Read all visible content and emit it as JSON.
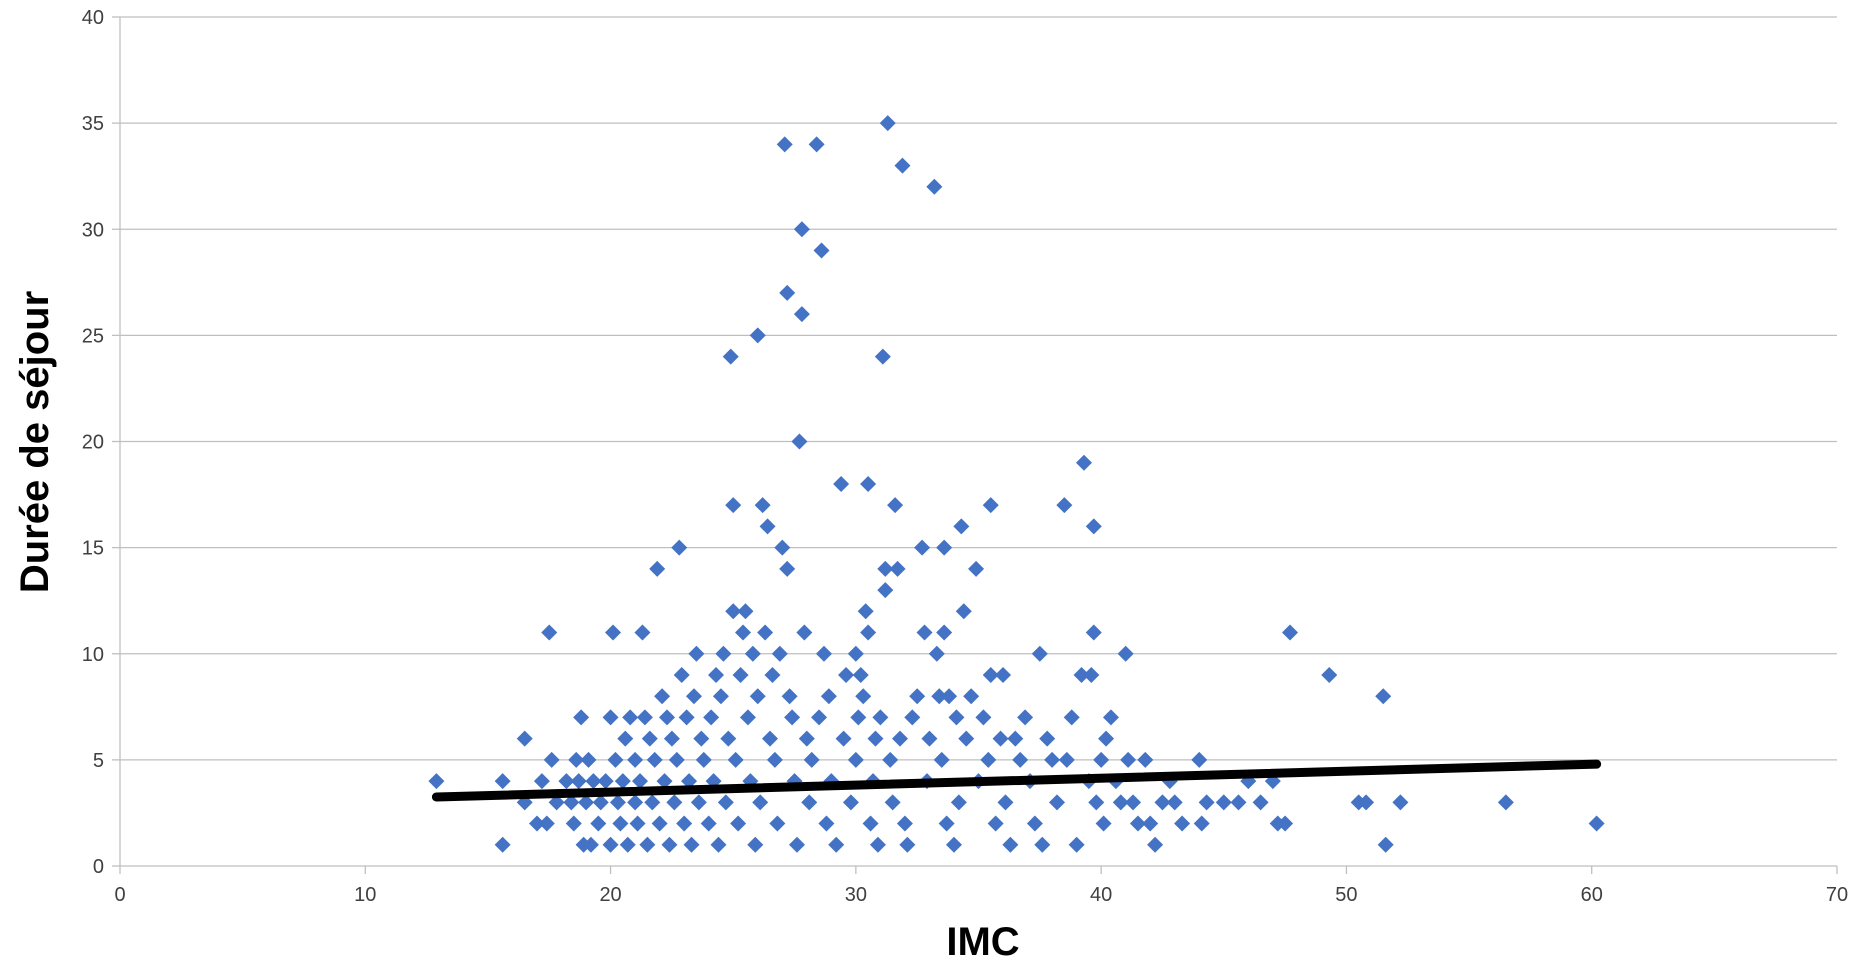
{
  "chart_data": {
    "type": "scatter",
    "title": "",
    "xlabel": "IMC",
    "ylabel": "Durée de séjour",
    "xlim": [
      0,
      70
    ],
    "ylim": [
      0,
      40
    ],
    "x_ticks": [
      0,
      10,
      20,
      30,
      40,
      50,
      60,
      70
    ],
    "y_ticks": [
      0,
      5,
      10,
      15,
      20,
      25,
      30,
      35,
      40
    ],
    "grid": "horizontal",
    "legend": "none",
    "marker": "diamond",
    "colors": {
      "points": "#4472C4",
      "trendline": "#000000",
      "grid": "#BFBFBF",
      "axis": "#BFBFBF"
    },
    "trendline": {
      "type": "linear",
      "x": [
        12.9,
        60.2
      ],
      "y": [
        3.25,
        4.8
      ]
    },
    "series": [
      {
        "name": "",
        "points": [
          [
            12.9,
            4
          ],
          [
            15.6,
            4
          ],
          [
            15.6,
            1
          ],
          [
            16.5,
            6
          ],
          [
            16.5,
            3
          ],
          [
            17,
            2
          ],
          [
            17.2,
            4
          ],
          [
            17.4,
            2
          ],
          [
            17.5,
            11
          ],
          [
            17.6,
            5
          ],
          [
            17.8,
            3
          ],
          [
            18.2,
            4
          ],
          [
            18.4,
            3
          ],
          [
            18.5,
            2
          ],
          [
            18.6,
            5
          ],
          [
            18.7,
            4
          ],
          [
            18.8,
            7
          ],
          [
            18.9,
            1
          ],
          [
            19,
            3
          ],
          [
            19.1,
            5
          ],
          [
            19.2,
            1
          ],
          [
            19.3,
            4
          ],
          [
            19.5,
            2
          ],
          [
            19.6,
            3
          ],
          [
            19.8,
            4
          ],
          [
            20,
            7
          ],
          [
            20,
            1
          ],
          [
            20.1,
            11
          ],
          [
            20.2,
            5
          ],
          [
            20.3,
            3
          ],
          [
            20.4,
            2
          ],
          [
            20.5,
            4
          ],
          [
            20.6,
            6
          ],
          [
            20.7,
            1
          ],
          [
            20.8,
            7
          ],
          [
            21,
            5
          ],
          [
            21,
            3
          ],
          [
            21.1,
            2
          ],
          [
            21.2,
            4
          ],
          [
            21.3,
            11
          ],
          [
            21.4,
            7
          ],
          [
            21.5,
            1
          ],
          [
            21.6,
            6
          ],
          [
            21.7,
            3
          ],
          [
            21.8,
            5
          ],
          [
            21.9,
            14
          ],
          [
            22,
            2
          ],
          [
            22.1,
            8
          ],
          [
            22.2,
            4
          ],
          [
            22.3,
            7
          ],
          [
            22.4,
            1
          ],
          [
            22.5,
            6
          ],
          [
            22.6,
            3
          ],
          [
            22.7,
            5
          ],
          [
            22.8,
            15
          ],
          [
            22.9,
            9
          ],
          [
            23,
            2
          ],
          [
            23.1,
            7
          ],
          [
            23.2,
            4
          ],
          [
            23.3,
            1
          ],
          [
            23.4,
            8
          ],
          [
            23.5,
            10
          ],
          [
            23.6,
            3
          ],
          [
            23.7,
            6
          ],
          [
            23.8,
            5
          ],
          [
            24,
            2
          ],
          [
            24.1,
            7
          ],
          [
            24.2,
            4
          ],
          [
            24.3,
            9
          ],
          [
            24.4,
            1
          ],
          [
            24.5,
            8
          ],
          [
            24.6,
            10
          ],
          [
            24.7,
            3
          ],
          [
            24.8,
            6
          ],
          [
            24.9,
            24
          ],
          [
            25,
            17
          ],
          [
            25,
            12
          ],
          [
            25.1,
            5
          ],
          [
            25.2,
            2
          ],
          [
            25.3,
            9
          ],
          [
            25.4,
            11
          ],
          [
            25.5,
            12
          ],
          [
            25.6,
            7
          ],
          [
            25.7,
            4
          ],
          [
            25.8,
            10
          ],
          [
            25.9,
            1
          ],
          [
            26,
            25
          ],
          [
            26,
            8
          ],
          [
            26.1,
            3
          ],
          [
            26.2,
            17
          ],
          [
            26.3,
            11
          ],
          [
            26.4,
            16
          ],
          [
            26.5,
            6
          ],
          [
            26.6,
            9
          ],
          [
            26.7,
            5
          ],
          [
            26.8,
            2
          ],
          [
            26.9,
            10
          ],
          [
            27,
            15
          ],
          [
            27.1,
            34
          ],
          [
            27.2,
            14
          ],
          [
            27.2,
            27
          ],
          [
            27.3,
            8
          ],
          [
            27.4,
            7
          ],
          [
            27.5,
            4
          ],
          [
            27.6,
            1
          ],
          [
            27.7,
            20
          ],
          [
            27.8,
            30
          ],
          [
            27.8,
            26
          ],
          [
            27.9,
            11
          ],
          [
            28,
            6
          ],
          [
            28.1,
            3
          ],
          [
            28.2,
            5
          ],
          [
            28.4,
            34
          ],
          [
            28.5,
            7
          ],
          [
            28.6,
            29
          ],
          [
            28.7,
            10
          ],
          [
            28.8,
            2
          ],
          [
            28.9,
            8
          ],
          [
            29,
            4
          ],
          [
            29.2,
            1
          ],
          [
            29.4,
            18
          ],
          [
            29.5,
            6
          ],
          [
            29.6,
            9
          ],
          [
            29.8,
            3
          ],
          [
            30,
            10
          ],
          [
            30,
            5
          ],
          [
            30.1,
            7
          ],
          [
            30.2,
            9
          ],
          [
            30.3,
            8
          ],
          [
            30.4,
            12
          ],
          [
            30.5,
            18
          ],
          [
            30.5,
            11
          ],
          [
            30.6,
            2
          ],
          [
            30.7,
            4
          ],
          [
            30.8,
            6
          ],
          [
            30.9,
            1
          ],
          [
            31,
            7
          ],
          [
            31.1,
            24
          ],
          [
            31.2,
            14
          ],
          [
            31.2,
            13
          ],
          [
            31.3,
            35
          ],
          [
            31.4,
            5
          ],
          [
            31.5,
            3
          ],
          [
            31.6,
            17
          ],
          [
            31.7,
            14
          ],
          [
            31.8,
            6
          ],
          [
            31.9,
            33
          ],
          [
            32,
            2
          ],
          [
            32.1,
            1
          ],
          [
            32.3,
            7
          ],
          [
            32.5,
            8
          ],
          [
            32.7,
            15
          ],
          [
            32.8,
            11
          ],
          [
            32.9,
            4
          ],
          [
            33,
            6
          ],
          [
            33.2,
            32
          ],
          [
            33.3,
            10
          ],
          [
            33.4,
            8
          ],
          [
            33.5,
            5
          ],
          [
            33.6,
            11
          ],
          [
            33.6,
            15
          ],
          [
            33.7,
            2
          ],
          [
            33.8,
            8
          ],
          [
            34,
            1
          ],
          [
            34.1,
            7
          ],
          [
            34.2,
            3
          ],
          [
            34.3,
            16
          ],
          [
            34.4,
            12
          ],
          [
            34.5,
            6
          ],
          [
            34.7,
            8
          ],
          [
            34.9,
            14
          ],
          [
            35,
            4
          ],
          [
            35.2,
            7
          ],
          [
            35.4,
            5
          ],
          [
            35.5,
            17
          ],
          [
            35.5,
            9
          ],
          [
            35.7,
            2
          ],
          [
            35.9,
            6
          ],
          [
            36,
            9
          ],
          [
            36.1,
            3
          ],
          [
            36.3,
            1
          ],
          [
            36.5,
            6
          ],
          [
            36.7,
            5
          ],
          [
            36.9,
            7
          ],
          [
            37.1,
            4
          ],
          [
            37.3,
            2
          ],
          [
            37.5,
            10
          ],
          [
            37.6,
            1
          ],
          [
            37.8,
            6
          ],
          [
            38,
            5
          ],
          [
            38.2,
            3
          ],
          [
            38.5,
            17
          ],
          [
            38.6,
            5
          ],
          [
            38.8,
            7
          ],
          [
            39,
            1
          ],
          [
            39.2,
            9
          ],
          [
            39.3,
            19
          ],
          [
            39.5,
            4
          ],
          [
            39.6,
            9
          ],
          [
            39.7,
            16
          ],
          [
            39.7,
            11
          ],
          [
            39.8,
            3
          ],
          [
            40,
            5
          ],
          [
            40.1,
            2
          ],
          [
            40.2,
            6
          ],
          [
            40.4,
            7
          ],
          [
            40.6,
            4
          ],
          [
            40.8,
            3
          ],
          [
            41,
            10
          ],
          [
            41.1,
            5
          ],
          [
            41.3,
            3
          ],
          [
            41.5,
            2
          ],
          [
            41.8,
            5
          ],
          [
            42,
            2
          ],
          [
            42.2,
            1
          ],
          [
            42.5,
            3
          ],
          [
            42.8,
            4
          ],
          [
            43,
            3
          ],
          [
            43.3,
            2
          ],
          [
            44,
            5
          ],
          [
            44.1,
            2
          ],
          [
            44.3,
            3
          ],
          [
            45,
            3
          ],
          [
            45.6,
            3
          ],
          [
            46,
            4
          ],
          [
            46.5,
            3
          ],
          [
            47,
            4
          ],
          [
            47.2,
            2
          ],
          [
            47.5,
            2
          ],
          [
            47.7,
            11
          ],
          [
            49.3,
            9
          ],
          [
            50.5,
            3
          ],
          [
            50.8,
            3
          ],
          [
            51.5,
            8
          ],
          [
            51.6,
            1
          ],
          [
            52.2,
            3
          ],
          [
            56.5,
            3
          ],
          [
            60.2,
            2
          ]
        ]
      }
    ]
  }
}
